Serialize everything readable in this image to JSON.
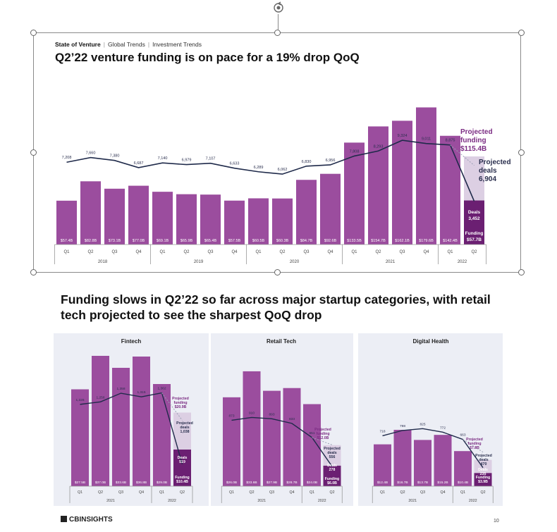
{
  "breadcrumb": {
    "section": "State of Venture",
    "items": [
      "Global Trends",
      "Investment Trends"
    ]
  },
  "title": "Q2’22 venture funding is on pace for a 19% drop QoQ",
  "headline": "Funding slows in Q2’22 so far across major startup categories, with retail tech projected to see the sharpest QoQ drop",
  "footer": {
    "logo": "CBINSIGHTS",
    "page": "10"
  },
  "colors": {
    "bar": "#9b4d9e",
    "bar_projected": "#dccfe3",
    "bar_partial": "#6b1f72",
    "line": "#1f2a4a"
  },
  "chart_data": [
    {
      "id": "main",
      "type": "bar",
      "title": "Q2’22 venture funding is on pace for a 19% drop QoQ",
      "categories": [
        "Q1",
        "Q2",
        "Q3",
        "Q4",
        "Q1",
        "Q2",
        "Q3",
        "Q4",
        "Q1",
        "Q2",
        "Q3",
        "Q4",
        "Q1",
        "Q2",
        "Q3",
        "Q4",
        "Q1",
        "Q2"
      ],
      "years": [
        {
          "label": "2018",
          "span": 4
        },
        {
          "label": "2019",
          "span": 4
        },
        {
          "label": "2020",
          "span": 4
        },
        {
          "label": "2021",
          "span": 4
        },
        {
          "label": "2022",
          "span": 2
        }
      ],
      "series": [
        {
          "name": "Funding ($B)",
          "values": [
            57.4,
            82.8,
            73.1,
            77.0,
            69.1,
            65.9,
            65.4,
            57.5,
            60.5,
            60.3,
            84.7,
            92.6,
            133.5,
            154.7,
            162.1,
            179.6,
            142.4,
            57.7
          ],
          "labels": [
            "$57.4B",
            "$82.8B",
            "$73.1B",
            "$77.0B",
            "$69.1B",
            "$65.9B",
            "$65.4B",
            "$57.5B",
            "$60.5B",
            "$60.3B",
            "$84.7B",
            "$92.6B",
            "$133.5B",
            "$154.7B",
            "$162.1B",
            "$179.6B",
            "$142.4B",
            ""
          ]
        },
        {
          "name": "Deals",
          "values": [
            7208,
            7660,
            7380,
            6687,
            7140,
            6979,
            7107,
            6633,
            6289,
            6062,
            6830,
            6956,
            7808,
            8293,
            9324,
            9011,
            8875,
            3452
          ],
          "labels": [
            "7,208",
            "7,660",
            "7,380",
            "6,687",
            "7,140",
            "6,979",
            "7,107",
            "6,633",
            "6,289",
            "6,062",
            "6,830",
            "6,956",
            "7,808",
            "8,293",
            "9,324",
            "9,011",
            "8,875",
            ""
          ]
        }
      ],
      "projected": {
        "funding": 115.4,
        "deals": 6904,
        "funding_label": "Projected funding $115.4B",
        "deals_label": "Projected deals 6,904"
      },
      "partial": {
        "deals_label": "Deals",
        "deals_value": "3,452",
        "funding_label": "Funding",
        "funding_value": "$57.7B"
      },
      "annotations": {
        "projected_funding": [
          "Projected",
          "funding",
          "$115.4B"
        ],
        "projected_deals": [
          "Projected",
          "deals",
          "6,904"
        ]
      }
    },
    {
      "id": "fintech",
      "type": "bar",
      "title": "Fintech",
      "categories": [
        "Q1",
        "Q2",
        "Q3",
        "Q4",
        "Q1",
        "Q2"
      ],
      "years": [
        {
          "label": "2021",
          "span": 4
        },
        {
          "label": "2022",
          "span": 2
        }
      ],
      "series": [
        {
          "name": "Funding ($B)",
          "values": [
            27.5,
            37.0,
            33.6,
            36.8,
            29.0,
            10.4
          ],
          "labels": [
            "$27.5B",
            "$37.0B",
            "$33.6B",
            "$36.8B",
            "$29.0B",
            ""
          ]
        },
        {
          "name": "Deals",
          "values": [
            1226,
            1256,
            1358,
            1315,
            1362,
            519
          ],
          "labels": [
            "1,226",
            "1,256",
            "1,358",
            "1,315",
            "1,362",
            ""
          ]
        }
      ],
      "projected": {
        "funding": 20.9,
        "deals": 1038
      },
      "annotations": {
        "projected_funding": [
          "Projected",
          "funding",
          "$20.9B"
        ],
        "projected_deals": [
          "Projected",
          "deals",
          "1,038"
        ],
        "deals": [
          "Deals",
          "519"
        ],
        "funding": [
          "Funding",
          "$10.4B"
        ]
      }
    },
    {
      "id": "retail",
      "type": "bar",
      "title": "Retail Tech",
      "categories": [
        "Q1",
        "Q2",
        "Q3",
        "Q4",
        "Q1",
        "Q2"
      ],
      "years": [
        {
          "label": "2021",
          "span": 4
        },
        {
          "label": "2022",
          "span": 2
        }
      ],
      "series": [
        {
          "name": "Funding ($B)",
          "values": [
            26.0,
            33.6,
            27.9,
            28.7,
            24.0,
            6.0
          ],
          "labels": [
            "$26.0B",
            "$33.6B",
            "$27.9B",
            "$28.7B",
            "$24.0B",
            ""
          ]
        },
        {
          "name": "Deals",
          "values": [
            873,
            910,
            893,
            833,
            651,
            278
          ],
          "labels": [
            "873",
            "910",
            "893",
            "833",
            "651",
            ""
          ]
        }
      ],
      "projected": {
        "funding": 12.0,
        "deals": 556
      },
      "annotations": {
        "projected_funding": [
          "Projected",
          "funding",
          "$12.0B"
        ],
        "projected_deals": [
          "Projected",
          "deals",
          "556"
        ],
        "deals": [
          "Deals",
          "278"
        ],
        "funding": [
          "Funding",
          "$6.0B"
        ]
      }
    },
    {
      "id": "health",
      "type": "bar",
      "title": "Digital Health",
      "categories": [
        "Q1",
        "Q2",
        "Q3",
        "Q4",
        "Q1",
        "Q2"
      ],
      "years": [
        {
          "label": "2021",
          "span": 4
        },
        {
          "label": "2022",
          "span": 2
        }
      ],
      "series": [
        {
          "name": "Funding ($B)",
          "values": [
            12.4,
            16.7,
            13.7,
            15.2,
            10.4,
            3.9
          ],
          "labels": [
            "$12.4B",
            "$16.7B",
            "$13.7B",
            "$15.2B",
            "$10.4B",
            ""
          ]
        },
        {
          "name": "Deals",
          "values": [
            718,
            798,
            825,
            772,
            663,
            235
          ],
          "labels": [
            "718",
            "798",
            "825",
            "772",
            "663",
            ""
          ]
        }
      ],
      "projected": {
        "funding": 7.8,
        "deals": 470
      },
      "annotations": {
        "projected_funding": [
          "Projected",
          "funding",
          "$7.8B"
        ],
        "projected_deals": [
          "Projected",
          "deals",
          "470"
        ],
        "deals": [
          "Deals",
          "235"
        ],
        "funding": [
          "Funding",
          "$3.9B"
        ]
      }
    }
  ]
}
